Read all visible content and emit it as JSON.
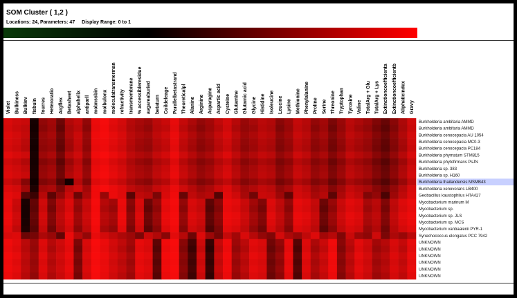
{
  "header": {
    "title": "SOM Cluster ( 1,2 )",
    "locations": "Locations: 24, Parameters: 47",
    "display_range": "Display Range: 0 to 1"
  },
  "colors": {
    "scale_low": "#0a3a0a",
    "scale_mid": "#000000",
    "scale_high": "#ff0000",
    "highlight": "#c8d0ff"
  },
  "chart_data": {
    "type": "heatmap",
    "title": "SOM Cluster ( 1,2 )",
    "value_range": [
      0,
      1
    ],
    "columns": [
      "Violet",
      "Bulkiness",
      "Bulkiev",
      "fisbuin",
      "fourres",
      "Heteroratio",
      "Argflex",
      "Betasheet",
      "alphahelix",
      "antiparll",
      "mobnssbin",
      "molbulonx",
      "moleculatransmerman",
      "refractivity",
      "transmembrane",
      "% accessibleresidue",
      "avgareaburied",
      "betaturn",
      "Coildeleage",
      "Parallelbetastrand",
      "Theoreticalpl",
      "Alanine",
      "Arginine",
      "Asparagine",
      "Aspartic acid",
      "Cysteine",
      "Glutamine",
      "Glutamic acid",
      "Glycine",
      "Histidine",
      "Isoleucine",
      "Leucine",
      "Lysine",
      "Methionine",
      "Phenylalanine",
      "Proline",
      "Serine",
      "Threonine",
      "Tryptophan",
      "Tyrosine",
      "Valine",
      "TotalArg + Glu",
      "TotalArg + Lys",
      "Extinctioncoefficienta",
      "Extinctioncoefficientb",
      "Aliphaticindex",
      "Gravy"
    ],
    "rows": [
      "Burkholderia ambifaria AMMD",
      "Burkholderia ambifaria AMMD",
      "Burkholderia cenocepacia AU 1054",
      "Burkholderia cenocepacia MC0-3",
      "Burkholderia cenocepacia PC184",
      "Burkholderia phymatum STM815",
      "Burkholderia phytofirmans PsJN",
      "Burkholderia sp. 383",
      "Burkholderia sp. H160",
      "Burkholderia thailandensis MSMB43",
      "Burkholderia xenovorans LB400",
      "Geobacillus kaustophilus HTA427",
      "Mycobacterium marinum M",
      "Mycobacterium sp.",
      "Mycobacterium sp. JLS",
      "Mycobacterium sp. MCS",
      "Mycobacterium vanbaalenii PYR-1",
      "Synechococcus elongatus PCC 7942",
      "UNKNOWN",
      "UNKNOWN",
      "UNKNOWN",
      "UNKNOWN",
      "UNKNOWN",
      "UNKNOWN"
    ],
    "highlighted_row": 9,
    "values": [
      [
        0.85,
        0.8,
        0.78,
        0.05,
        0.55,
        0.62,
        0.4,
        0.68,
        0.75,
        0.55,
        0.92,
        0.96,
        0.88,
        0.82,
        0.7,
        0.64,
        0.6,
        0.72,
        0.78,
        0.9,
        0.76,
        0.66,
        0.56,
        0.62,
        0.74,
        0.82,
        0.7,
        0.58,
        0.64,
        0.72,
        0.68,
        0.52,
        0.6,
        0.76,
        0.7,
        0.56,
        0.62,
        0.46,
        0.58,
        0.72,
        0.66,
        0.6,
        0.48,
        0.38,
        0.52,
        0.66,
        0.8
      ],
      [
        0.83,
        0.78,
        0.74,
        0.04,
        0.52,
        0.6,
        0.36,
        0.64,
        0.72,
        0.52,
        0.9,
        0.95,
        0.86,
        0.8,
        0.68,
        0.62,
        0.56,
        0.7,
        0.74,
        0.88,
        0.72,
        0.62,
        0.52,
        0.6,
        0.7,
        0.8,
        0.66,
        0.56,
        0.6,
        0.7,
        0.66,
        0.48,
        0.58,
        0.74,
        0.68,
        0.52,
        0.6,
        0.42,
        0.56,
        0.7,
        0.62,
        0.56,
        0.44,
        0.34,
        0.48,
        0.64,
        0.78
      ],
      [
        0.86,
        0.82,
        0.76,
        0.06,
        0.58,
        0.64,
        0.42,
        0.66,
        0.78,
        0.58,
        0.93,
        0.96,
        0.9,
        0.84,
        0.72,
        0.66,
        0.62,
        0.74,
        0.8,
        0.92,
        0.78,
        0.68,
        0.58,
        0.64,
        0.76,
        0.84,
        0.72,
        0.6,
        0.66,
        0.74,
        0.7,
        0.54,
        0.62,
        0.78,
        0.72,
        0.58,
        0.64,
        0.48,
        0.6,
        0.74,
        0.68,
        0.62,
        0.5,
        0.4,
        0.54,
        0.68,
        0.82
      ],
      [
        0.84,
        0.8,
        0.72,
        0.05,
        0.56,
        0.6,
        0.38,
        0.62,
        0.76,
        0.56,
        0.92,
        0.94,
        0.88,
        0.82,
        0.7,
        0.62,
        0.58,
        0.7,
        0.76,
        0.9,
        0.74,
        0.64,
        0.54,
        0.6,
        0.72,
        0.8,
        0.68,
        0.56,
        0.62,
        0.7,
        0.66,
        0.5,
        0.58,
        0.74,
        0.68,
        0.54,
        0.6,
        0.44,
        0.56,
        0.7,
        0.64,
        0.58,
        0.46,
        0.36,
        0.5,
        0.64,
        0.8
      ],
      [
        0.82,
        0.78,
        0.7,
        0.04,
        0.54,
        0.58,
        0.36,
        0.6,
        0.74,
        0.54,
        0.9,
        0.93,
        0.86,
        0.8,
        0.68,
        0.6,
        0.56,
        0.68,
        0.74,
        0.88,
        0.72,
        0.62,
        0.52,
        0.58,
        0.7,
        0.78,
        0.66,
        0.54,
        0.6,
        0.68,
        0.64,
        0.48,
        0.56,
        0.72,
        0.66,
        0.52,
        0.58,
        0.42,
        0.54,
        0.68,
        0.62,
        0.56,
        0.44,
        0.34,
        0.48,
        0.62,
        0.78
      ],
      [
        0.88,
        0.84,
        0.8,
        0.06,
        0.6,
        0.66,
        0.44,
        0.7,
        0.8,
        0.6,
        0.94,
        0.97,
        0.92,
        0.86,
        0.74,
        0.68,
        0.64,
        0.76,
        0.82,
        0.93,
        0.8,
        0.7,
        0.6,
        0.66,
        0.78,
        0.86,
        0.74,
        0.62,
        0.68,
        0.76,
        0.72,
        0.56,
        0.64,
        0.8,
        0.74,
        0.6,
        0.66,
        0.5,
        0.62,
        0.76,
        0.7,
        0.64,
        0.52,
        0.42,
        0.56,
        0.7,
        0.84
      ],
      [
        0.8,
        0.76,
        0.68,
        0.05,
        0.5,
        0.56,
        0.34,
        0.58,
        0.72,
        0.5,
        0.88,
        0.92,
        0.84,
        0.78,
        0.66,
        0.58,
        0.54,
        0.66,
        0.72,
        0.86,
        0.7,
        0.6,
        0.5,
        0.56,
        0.68,
        0.76,
        0.64,
        0.52,
        0.58,
        0.66,
        0.62,
        0.46,
        0.54,
        0.7,
        0.64,
        0.5,
        0.56,
        0.4,
        0.52,
        0.66,
        0.6,
        0.54,
        0.42,
        0.32,
        0.46,
        0.6,
        0.76
      ],
      [
        0.84,
        0.8,
        0.74,
        0.06,
        0.56,
        0.62,
        0.4,
        0.64,
        0.76,
        0.56,
        0.91,
        0.95,
        0.88,
        0.82,
        0.7,
        0.64,
        0.6,
        0.72,
        0.78,
        0.9,
        0.76,
        0.66,
        0.56,
        0.62,
        0.74,
        0.82,
        0.7,
        0.58,
        0.64,
        0.72,
        0.68,
        0.52,
        0.6,
        0.76,
        0.7,
        0.56,
        0.62,
        0.46,
        0.58,
        0.72,
        0.66,
        0.6,
        0.48,
        0.38,
        0.52,
        0.66,
        0.8
      ],
      [
        0.86,
        0.82,
        0.78,
        0.07,
        0.58,
        0.64,
        0.42,
        0.68,
        0.78,
        0.58,
        0.93,
        0.96,
        0.9,
        0.84,
        0.72,
        0.66,
        0.62,
        0.74,
        0.8,
        0.92,
        0.78,
        0.68,
        0.58,
        0.64,
        0.76,
        0.84,
        0.72,
        0.6,
        0.66,
        0.74,
        0.7,
        0.54,
        0.62,
        0.78,
        0.72,
        0.58,
        0.64,
        0.48,
        0.6,
        0.74,
        0.68,
        0.62,
        0.5,
        0.4,
        0.54,
        0.68,
        0.82
      ],
      [
        0.78,
        0.72,
        0.5,
        0.03,
        0.48,
        0.54,
        0.3,
        0.04,
        0.7,
        0.48,
        0.86,
        0.9,
        0.82,
        0.76,
        0.64,
        0.56,
        0.52,
        0.64,
        0.7,
        0.84,
        0.68,
        0.58,
        0.48,
        0.54,
        0.66,
        0.74,
        0.62,
        0.5,
        0.56,
        0.64,
        0.6,
        0.44,
        0.52,
        0.68,
        0.62,
        0.48,
        0.54,
        0.38,
        0.5,
        0.64,
        0.58,
        0.52,
        0.4,
        0.3,
        0.44,
        0.58,
        0.74
      ],
      [
        0.86,
        0.82,
        0.62,
        0.08,
        0.62,
        0.66,
        0.46,
        0.72,
        0.8,
        0.62,
        0.94,
        0.97,
        0.92,
        0.86,
        0.74,
        0.68,
        0.64,
        0.76,
        0.82,
        0.92,
        0.8,
        0.7,
        0.6,
        0.66,
        0.78,
        0.86,
        0.74,
        0.62,
        0.68,
        0.76,
        0.72,
        0.56,
        0.64,
        0.8,
        0.74,
        0.6,
        0.66,
        0.5,
        0.62,
        0.76,
        0.7,
        0.64,
        0.52,
        0.42,
        0.56,
        0.7,
        0.84
      ],
      [
        0.9,
        0.86,
        0.3,
        0.2,
        0.7,
        0.34,
        0.56,
        0.78,
        0.4,
        0.66,
        0.94,
        0.58,
        0.92,
        0.86,
        0.32,
        0.74,
        0.7,
        0.46,
        0.84,
        0.94,
        0.38,
        0.74,
        0.66,
        0.7,
        0.3,
        0.88,
        0.8,
        0.64,
        0.42,
        0.78,
        0.76,
        0.6,
        0.36,
        0.82,
        0.78,
        0.64,
        0.7,
        0.34,
        0.66,
        0.8,
        0.74,
        0.48,
        0.56,
        0.26,
        0.6,
        0.74,
        0.86
      ],
      [
        0.92,
        0.78,
        0.06,
        0.36,
        0.8,
        0.48,
        0.72,
        0.86,
        0.6,
        0.78,
        0.96,
        0.7,
        0.62,
        0.92,
        0.52,
        0.84,
        0.4,
        0.58,
        0.9,
        0.96,
        0.56,
        0.84,
        0.78,
        0.34,
        0.52,
        0.92,
        0.88,
        0.78,
        0.62,
        0.48,
        0.86,
        0.74,
        0.56,
        0.9,
        0.86,
        0.76,
        0.4,
        0.58,
        0.78,
        0.88,
        0.84,
        0.64,
        0.72,
        0.48,
        0.74,
        0.86,
        0.92
      ],
      [
        0.9,
        0.76,
        0.05,
        0.34,
        0.78,
        0.44,
        0.7,
        0.84,
        0.56,
        0.76,
        0.95,
        0.66,
        0.58,
        0.9,
        0.48,
        0.82,
        0.36,
        0.54,
        0.88,
        0.95,
        0.52,
        0.82,
        0.76,
        0.3,
        0.48,
        0.9,
        0.86,
        0.76,
        0.58,
        0.44,
        0.84,
        0.72,
        0.52,
        0.88,
        0.84,
        0.74,
        0.36,
        0.54,
        0.76,
        0.86,
        0.82,
        0.6,
        0.7,
        0.44,
        0.72,
        0.84,
        0.9
      ],
      [
        0.93,
        0.8,
        0.05,
        0.38,
        0.82,
        0.5,
        0.74,
        0.88,
        0.62,
        0.8,
        0.96,
        0.72,
        0.64,
        0.93,
        0.54,
        0.86,
        0.42,
        0.6,
        0.92,
        0.96,
        0.58,
        0.86,
        0.8,
        0.36,
        0.54,
        0.93,
        0.9,
        0.8,
        0.64,
        0.5,
        0.88,
        0.76,
        0.58,
        0.92,
        0.88,
        0.78,
        0.42,
        0.6,
        0.8,
        0.9,
        0.86,
        0.66,
        0.74,
        0.5,
        0.76,
        0.88,
        0.93
      ],
      [
        0.92,
        0.79,
        0.06,
        0.36,
        0.8,
        0.48,
        0.72,
        0.86,
        0.6,
        0.78,
        0.96,
        0.7,
        0.62,
        0.92,
        0.52,
        0.84,
        0.4,
        0.58,
        0.9,
        0.96,
        0.56,
        0.84,
        0.78,
        0.34,
        0.52,
        0.92,
        0.88,
        0.78,
        0.62,
        0.48,
        0.86,
        0.74,
        0.56,
        0.9,
        0.86,
        0.76,
        0.4,
        0.58,
        0.78,
        0.88,
        0.84,
        0.64,
        0.72,
        0.48,
        0.74,
        0.86,
        0.92
      ],
      [
        0.88,
        0.74,
        0.08,
        0.32,
        0.76,
        0.42,
        0.68,
        0.82,
        0.54,
        0.74,
        0.94,
        0.64,
        0.56,
        0.88,
        0.46,
        0.8,
        0.34,
        0.52,
        0.86,
        0.94,
        0.5,
        0.8,
        0.74,
        0.28,
        0.46,
        0.88,
        0.84,
        0.74,
        0.56,
        0.42,
        0.82,
        0.7,
        0.5,
        0.86,
        0.82,
        0.72,
        0.34,
        0.52,
        0.74,
        0.84,
        0.8,
        0.58,
        0.68,
        0.42,
        0.7,
        0.82,
        0.88
      ],
      [
        0.84,
        0.86,
        0.4,
        0.44,
        0.66,
        0.58,
        0.36,
        0.92,
        0.7,
        0.56,
        0.9,
        0.82,
        0.74,
        0.66,
        0.6,
        0.46,
        0.78,
        0.68,
        0.52,
        0.88,
        0.7,
        0.4,
        0.86,
        0.6,
        0.44,
        0.76,
        0.62,
        0.84,
        0.7,
        0.56,
        0.48,
        0.82,
        0.66,
        0.58,
        0.74,
        0.86,
        0.62,
        0.7,
        0.48,
        0.78,
        0.6,
        0.54,
        0.8,
        0.46,
        0.66,
        0.58,
        0.72
      ],
      [
        0.94,
        0.88,
        0.72,
        0.58,
        0.86,
        0.7,
        0.8,
        0.9,
        0.46,
        0.84,
        0.97,
        0.92,
        0.82,
        0.74,
        0.62,
        0.9,
        0.86,
        0.34,
        0.94,
        0.97,
        0.52,
        0.24,
        0.8,
        0.18,
        0.76,
        0.94,
        0.6,
        0.72,
        0.88,
        0.84,
        0.42,
        0.56,
        0.9,
        0.3,
        0.86,
        0.66,
        0.78,
        0.94,
        0.52,
        0.72,
        0.88,
        0.8,
        0.62,
        0.7,
        0.84,
        0.76,
        0.9
      ],
      [
        0.92,
        0.86,
        0.7,
        0.56,
        0.84,
        0.66,
        0.78,
        0.88,
        0.42,
        0.82,
        0.96,
        0.9,
        0.8,
        0.7,
        0.58,
        0.88,
        0.84,
        0.3,
        0.92,
        0.96,
        0.48,
        0.2,
        0.76,
        0.14,
        0.72,
        0.92,
        0.56,
        0.68,
        0.86,
        0.82,
        0.38,
        0.52,
        0.88,
        0.26,
        0.84,
        0.62,
        0.74,
        0.92,
        0.48,
        0.68,
        0.86,
        0.78,
        0.58,
        0.66,
        0.82,
        0.72,
        0.88
      ],
      [
        0.95,
        0.9,
        0.74,
        0.6,
        0.88,
        0.72,
        0.82,
        0.92,
        0.48,
        0.86,
        0.97,
        0.93,
        0.84,
        0.76,
        0.64,
        0.92,
        0.88,
        0.36,
        0.95,
        0.97,
        0.54,
        0.26,
        0.82,
        0.2,
        0.78,
        0.95,
        0.62,
        0.74,
        0.9,
        0.86,
        0.44,
        0.58,
        0.92,
        0.32,
        0.88,
        0.68,
        0.8,
        0.95,
        0.54,
        0.74,
        0.9,
        0.82,
        0.64,
        0.72,
        0.86,
        0.78,
        0.92
      ],
      [
        0.93,
        0.87,
        0.71,
        0.57,
        0.85,
        0.68,
        0.79,
        0.89,
        0.44,
        0.83,
        0.96,
        0.91,
        0.81,
        0.72,
        0.6,
        0.89,
        0.85,
        0.32,
        0.93,
        0.96,
        0.5,
        0.22,
        0.78,
        0.16,
        0.74,
        0.93,
        0.58,
        0.7,
        0.87,
        0.83,
        0.4,
        0.54,
        0.89,
        0.28,
        0.85,
        0.64,
        0.76,
        0.93,
        0.5,
        0.7,
        0.87,
        0.79,
        0.6,
        0.68,
        0.83,
        0.74,
        0.89
      ],
      [
        0.94,
        0.89,
        0.73,
        0.59,
        0.87,
        0.71,
        0.81,
        0.91,
        0.47,
        0.85,
        0.97,
        0.92,
        0.83,
        0.75,
        0.63,
        0.91,
        0.87,
        0.35,
        0.94,
        0.97,
        0.53,
        0.25,
        0.81,
        0.19,
        0.77,
        0.94,
        0.61,
        0.73,
        0.89,
        0.85,
        0.43,
        0.57,
        0.91,
        0.31,
        0.87,
        0.67,
        0.79,
        0.94,
        0.53,
        0.73,
        0.89,
        0.81,
        0.63,
        0.71,
        0.85,
        0.77,
        0.91
      ],
      [
        0.92,
        0.86,
        0.7,
        0.55,
        0.84,
        0.67,
        0.78,
        0.88,
        0.43,
        0.82,
        0.96,
        0.9,
        0.8,
        0.71,
        0.59,
        0.88,
        0.84,
        0.31,
        0.92,
        0.96,
        0.49,
        0.21,
        0.77,
        0.15,
        0.73,
        0.92,
        0.57,
        0.69,
        0.86,
        0.82,
        0.39,
        0.53,
        0.88,
        0.27,
        0.84,
        0.63,
        0.75,
        0.92,
        0.49,
        0.69,
        0.86,
        0.78,
        0.59,
        0.67,
        0.82,
        0.73,
        0.88
      ]
    ]
  }
}
